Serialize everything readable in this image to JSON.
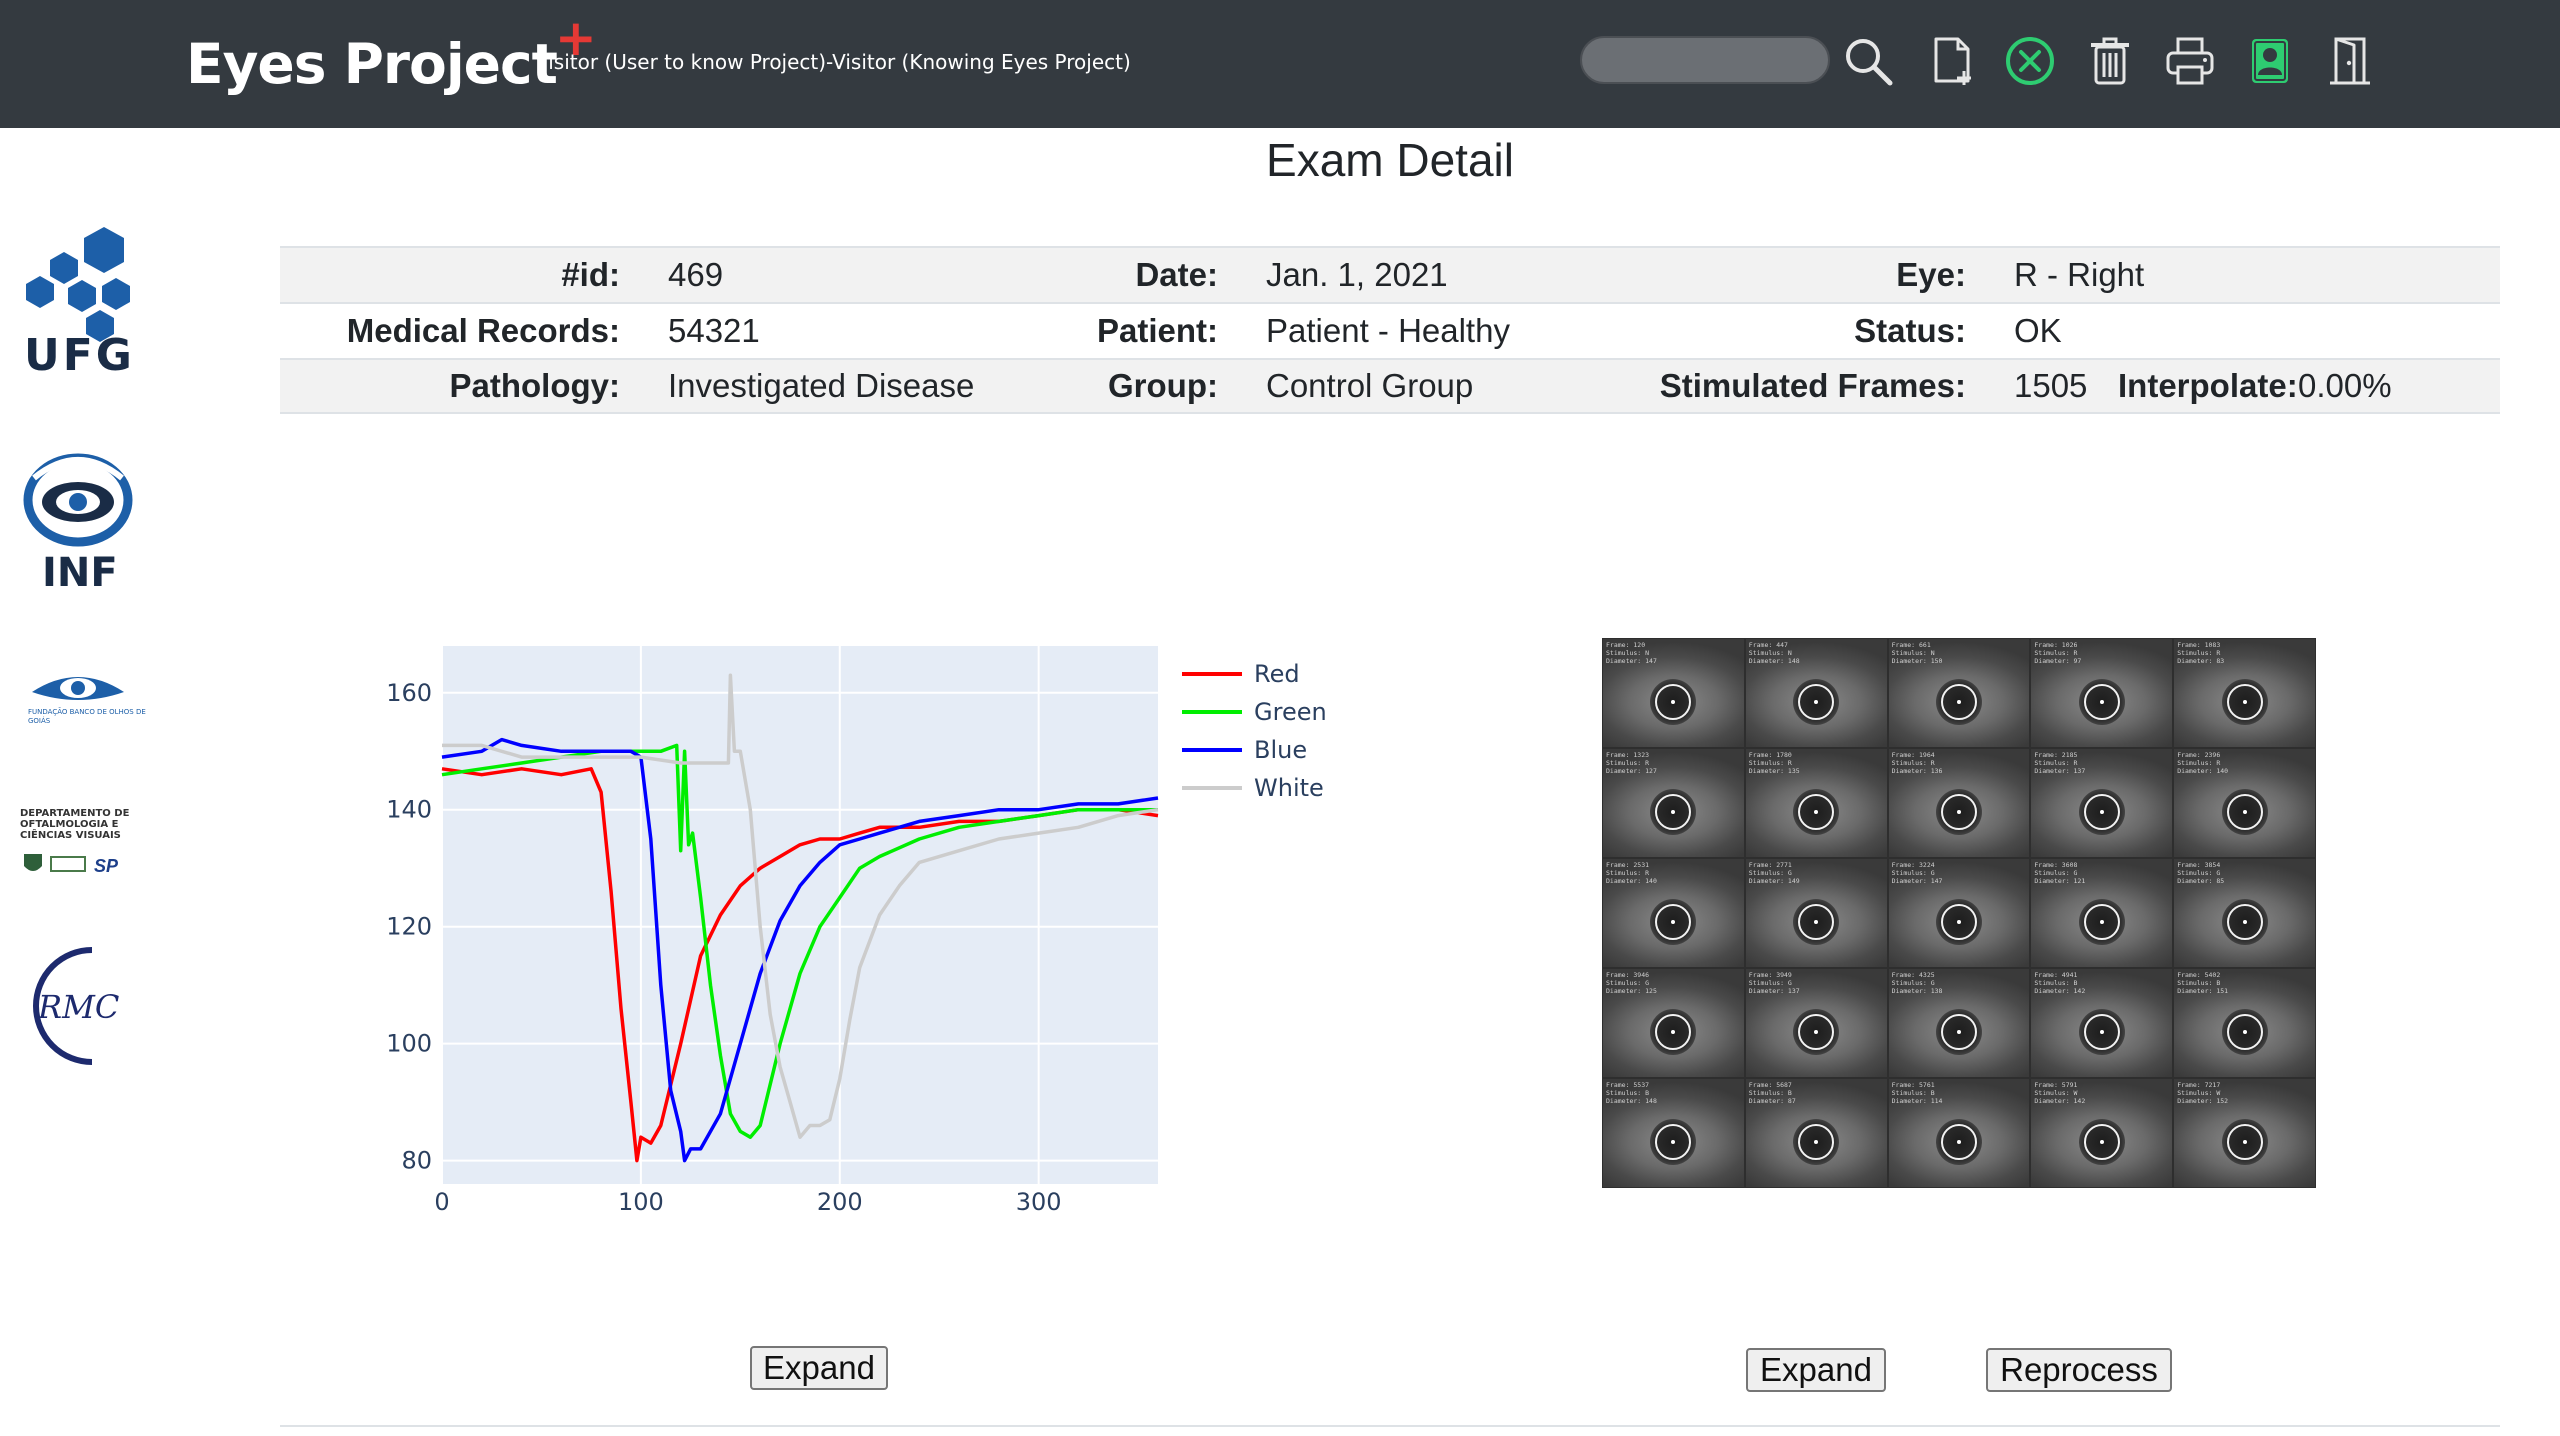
{
  "app": {
    "brand_name": "Eyes Project",
    "brand_mark": "+",
    "visitor_info": "Visitor (User to know Project)-Visitor (Knowing Eyes Project)"
  },
  "toolbar": {
    "search_placeholder": "",
    "icons": [
      "search-icon",
      "new-file-icon",
      "close-circle-icon",
      "trash-icon",
      "printer-icon",
      "user-badge-icon",
      "exit-door-icon"
    ],
    "accent_green": "#2ecc71"
  },
  "page": {
    "title": "Exam Detail"
  },
  "logos": {
    "ufg": "UFG",
    "inf": "INF",
    "fundacao": "FUNDAÇÃO BANCO DE OLHOS DE GOIÁS",
    "departamento": "DEPARTAMENTO DE OFTALMOLOGIA E CIÊNCIAS VISUAIS",
    "sp": "SP",
    "rmc": "RMC"
  },
  "exam": {
    "id_label": "#id:",
    "id_value": "469",
    "date_label": "Date:",
    "date_value": "Jan. 1, 2021",
    "eye_label": "Eye:",
    "eye_value": "R - Right",
    "records_label": "Medical Records:",
    "records_value": "54321",
    "patient_label": "Patient:",
    "patient_value": "Patient - Healthy",
    "status_label": "Status:",
    "status_value": "OK",
    "pathology_label": "Pathology:",
    "pathology_value": "Investigated Disease",
    "group_label": "Group:",
    "group_value": "Control Group",
    "frames_label": "Stimulated Frames:",
    "frames_value": "1505",
    "interpolate_label": "Interpolate:",
    "interpolate_value": "0.00%"
  },
  "chart_data": {
    "type": "line",
    "title": "",
    "xlabel": "",
    "ylabel": "",
    "xlim": [
      0,
      360
    ],
    "ylim": [
      76,
      168
    ],
    "x_ticks": [
      "0",
      "100",
      "200",
      "300"
    ],
    "y_ticks": [
      "80",
      "100",
      "120",
      "140",
      "160"
    ],
    "legend_position": "right",
    "grid": true,
    "series": [
      {
        "name": "Red",
        "color": "#ff0000",
        "points": [
          [
            0,
            147
          ],
          [
            20,
            146
          ],
          [
            40,
            147
          ],
          [
            60,
            146
          ],
          [
            75,
            147
          ],
          [
            80,
            143
          ],
          [
            85,
            126
          ],
          [
            90,
            106
          ],
          [
            95,
            90
          ],
          [
            98,
            80
          ],
          [
            100,
            84
          ],
          [
            105,
            83
          ],
          [
            110,
            86
          ],
          [
            120,
            100
          ],
          [
            130,
            115
          ],
          [
            140,
            122
          ],
          [
            150,
            127
          ],
          [
            160,
            130
          ],
          [
            170,
            132
          ],
          [
            180,
            134
          ],
          [
            190,
            135
          ],
          [
            200,
            135
          ],
          [
            210,
            136
          ],
          [
            220,
            137
          ],
          [
            240,
            137
          ],
          [
            260,
            138
          ],
          [
            280,
            138
          ],
          [
            300,
            139
          ],
          [
            320,
            140
          ],
          [
            340,
            140
          ],
          [
            360,
            139
          ]
        ]
      },
      {
        "name": "Green",
        "color": "#00ee00",
        "points": [
          [
            0,
            146
          ],
          [
            20,
            147
          ],
          [
            40,
            148
          ],
          [
            60,
            149
          ],
          [
            80,
            150
          ],
          [
            100,
            150
          ],
          [
            110,
            150
          ],
          [
            118,
            151
          ],
          [
            120,
            133
          ],
          [
            122,
            150
          ],
          [
            124,
            134
          ],
          [
            126,
            136
          ],
          [
            130,
            125
          ],
          [
            135,
            110
          ],
          [
            140,
            98
          ],
          [
            145,
            88
          ],
          [
            150,
            85
          ],
          [
            155,
            84
          ],
          [
            160,
            86
          ],
          [
            170,
            100
          ],
          [
            180,
            112
          ],
          [
            190,
            120
          ],
          [
            200,
            125
          ],
          [
            210,
            130
          ],
          [
            220,
            132
          ],
          [
            240,
            135
          ],
          [
            260,
            137
          ],
          [
            280,
            138
          ],
          [
            300,
            139
          ],
          [
            320,
            140
          ],
          [
            340,
            140
          ],
          [
            360,
            140
          ]
        ]
      },
      {
        "name": "Blue",
        "color": "#0000ff",
        "points": [
          [
            0,
            149
          ],
          [
            20,
            150
          ],
          [
            30,
            152
          ],
          [
            40,
            151
          ],
          [
            60,
            150
          ],
          [
            80,
            150
          ],
          [
            95,
            150
          ],
          [
            100,
            149
          ],
          [
            105,
            135
          ],
          [
            110,
            110
          ],
          [
            115,
            92
          ],
          [
            120,
            85
          ],
          [
            122,
            80
          ],
          [
            125,
            82
          ],
          [
            130,
            82
          ],
          [
            140,
            88
          ],
          [
            150,
            100
          ],
          [
            160,
            112
          ],
          [
            170,
            121
          ],
          [
            180,
            127
          ],
          [
            190,
            131
          ],
          [
            200,
            134
          ],
          [
            210,
            135
          ],
          [
            220,
            136
          ],
          [
            240,
            138
          ],
          [
            260,
            139
          ],
          [
            280,
            140
          ],
          [
            300,
            140
          ],
          [
            320,
            141
          ],
          [
            340,
            141
          ],
          [
            360,
            142
          ]
        ]
      },
      {
        "name": "White",
        "color": "#cccccc",
        "points": [
          [
            0,
            151
          ],
          [
            20,
            151
          ],
          [
            40,
            149
          ],
          [
            60,
            149
          ],
          [
            80,
            149
          ],
          [
            100,
            149
          ],
          [
            120,
            148
          ],
          [
            140,
            148
          ],
          [
            144,
            148
          ],
          [
            145,
            163
          ],
          [
            147,
            150
          ],
          [
            150,
            150
          ],
          [
            155,
            140
          ],
          [
            160,
            120
          ],
          [
            165,
            105
          ],
          [
            170,
            96
          ],
          [
            175,
            90
          ],
          [
            180,
            84
          ],
          [
            185,
            86
          ],
          [
            190,
            86
          ],
          [
            195,
            87
          ],
          [
            200,
            94
          ],
          [
            205,
            104
          ],
          [
            210,
            113
          ],
          [
            220,
            122
          ],
          [
            230,
            127
          ],
          [
            240,
            131
          ],
          [
            260,
            133
          ],
          [
            280,
            135
          ],
          [
            300,
            136
          ],
          [
            320,
            137
          ],
          [
            340,
            139
          ],
          [
            360,
            140
          ]
        ]
      }
    ]
  },
  "mosaic": {
    "frames": [
      {
        "label": "Frame: 120\nStimulus: N\nDiameter: 147"
      },
      {
        "label": "Frame: 447\nStimulus: N\nDiameter: 148"
      },
      {
        "label": "Frame: 661\nStimulus: N\nDiameter: 150"
      },
      {
        "label": "Frame: 1026\nStimulus: R\nDiameter: 97"
      },
      {
        "label": "Frame: 1083\nStimulus: R\nDiameter: 83"
      },
      {
        "label": "Frame: 1323\nStimulus: R\nDiameter: 127"
      },
      {
        "label": "Frame: 1780\nStimulus: R\nDiameter: 135"
      },
      {
        "label": "Frame: 1964\nStimulus: R\nDiameter: 136"
      },
      {
        "label": "Frame: 2185\nStimulus: R\nDiameter: 137"
      },
      {
        "label": "Frame: 2396\nStimulus: R\nDiameter: 140"
      },
      {
        "label": "Frame: 2531\nStimulus: R\nDiameter: 140"
      },
      {
        "label": "Frame: 2771\nStimulus: G\nDiameter: 149"
      },
      {
        "label": "Frame: 3224\nStimulus: G\nDiameter: 147"
      },
      {
        "label": "Frame: 3608\nStimulus: G\nDiameter: 121"
      },
      {
        "label": "Frame: 3854\nStimulus: G\nDiameter: 85"
      },
      {
        "label": "Frame: 3946\nStimulus: G\nDiameter: 125"
      },
      {
        "label": "Frame: 3949\nStimulus: G\nDiameter: 137"
      },
      {
        "label": "Frame: 4325\nStimulus: G\nDiameter: 138"
      },
      {
        "label": "Frame: 4941\nStimulus: B\nDiameter: 142"
      },
      {
        "label": "Frame: 5402\nStimulus: B\nDiameter: 151"
      },
      {
        "label": "Frame: 5537\nStimulus: B\nDiameter: 148"
      },
      {
        "label": "Frame: 5687\nStimulus: B\nDiameter: 87"
      },
      {
        "label": "Frame: 5761\nStimulus: B\nDiameter: 114"
      },
      {
        "label": "Frame: 5791\nStimulus: W\nDiameter: 142"
      },
      {
        "label": "Frame: 7217\nStimulus: W\nDiameter: 152"
      }
    ]
  },
  "buttons": {
    "expand_chart": "Expand",
    "expand_frames": "Expand",
    "reprocess": "Reprocess"
  }
}
